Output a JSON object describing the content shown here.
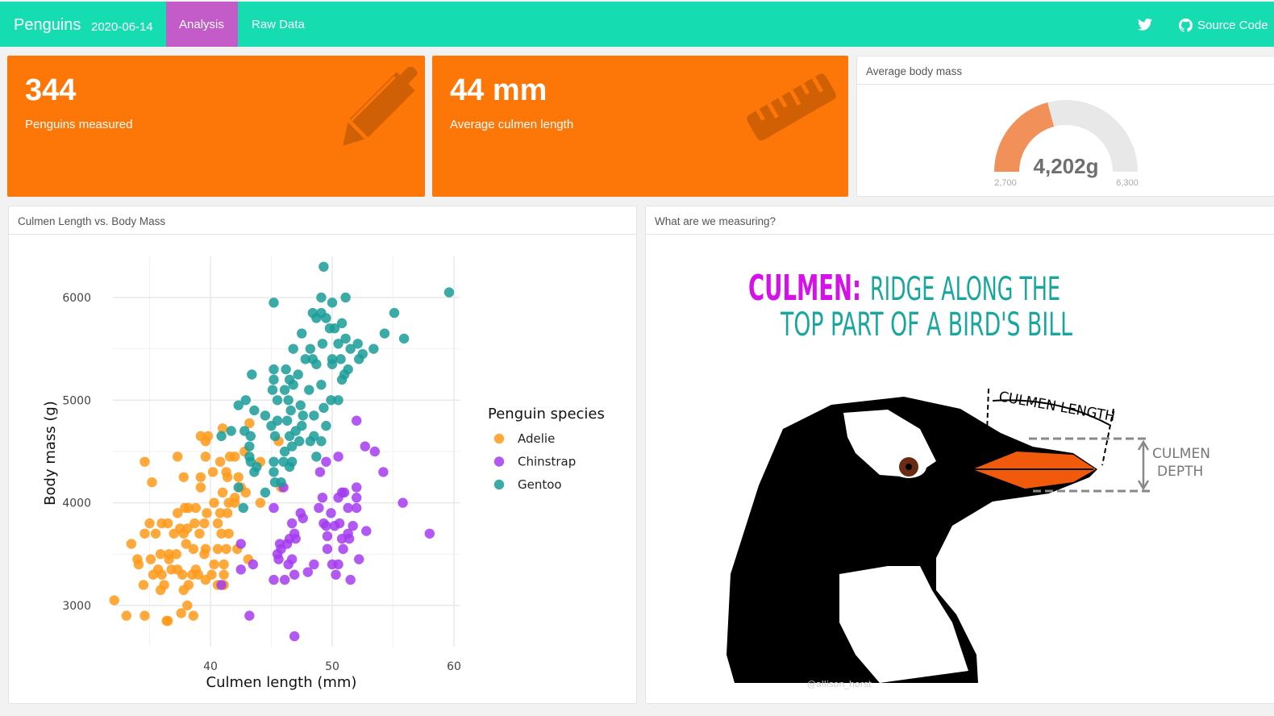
{
  "nav": {
    "brand": "Penguins",
    "date": "2020-06-14",
    "tabs": [
      {
        "label": "Analysis",
        "active": true
      },
      {
        "label": "Raw Data",
        "active": false
      }
    ],
    "twitter_icon": "twitter-icon",
    "source": {
      "icon": "github-icon",
      "label": "Source Code"
    }
  },
  "colors": {
    "navbar": "#16dcb2",
    "active_tab": "#c35bc8",
    "value_box": "#fd7608",
    "gauge_fill": "#f2905a",
    "gauge_track": "#e8e8e8"
  },
  "value_boxes": [
    {
      "value": "344",
      "caption": "Penguins measured",
      "icon": "pencil-icon"
    },
    {
      "value": "44 mm",
      "caption": "Average culmen length",
      "icon": "ruler-icon"
    }
  ],
  "gauge": {
    "title": "Average body mass",
    "value": 4202,
    "label": "4,202g",
    "min": 2700,
    "max": 6300,
    "min_label": "2,700",
    "max_label": "6,300"
  },
  "scatter_card": {
    "title": "Culmen Length vs. Body Mass"
  },
  "image_card": {
    "title": "What are we measuring?",
    "heading_key": "CULMEN:",
    "heading_rest_1": "RIDGE ALONG THE",
    "heading_rest_2": "TOP PART OF A BIRD'S BILL",
    "label_length": "CULMEN LENGTH",
    "label_depth_1": "CULMEN",
    "label_depth_2": "DEPTH",
    "credit": "@allison_horst"
  },
  "chart_data": {
    "type": "scatter",
    "xlabel": "Culmen length (mm)",
    "ylabel": "Body mass (g)",
    "xlim": [
      32,
      60.5
    ],
    "ylim": [
      2600,
      6400
    ],
    "xticks": [
      40,
      50,
      60
    ],
    "yticks": [
      3000,
      4000,
      5000,
      6000
    ],
    "grid": true,
    "legend": {
      "title": "Penguin species",
      "placement": "right"
    },
    "series": [
      {
        "name": "Adelie",
        "color": "#ff9a1a",
        "points": [
          [
            32.1,
            3050
          ],
          [
            33.1,
            2900
          ],
          [
            34.6,
            2900
          ],
          [
            36.5,
            2850
          ],
          [
            36.4,
            2850
          ],
          [
            38.6,
            2900
          ],
          [
            37.6,
            2925
          ],
          [
            38.1,
            3000
          ],
          [
            34.5,
            3200
          ],
          [
            35.9,
            3150
          ],
          [
            36.2,
            3200
          ],
          [
            37.8,
            3150
          ],
          [
            38.2,
            3200
          ],
          [
            39.6,
            3250
          ],
          [
            40.6,
            3200
          ],
          [
            41.1,
            3200
          ],
          [
            35.3,
            3300
          ],
          [
            36,
            3300
          ],
          [
            36.8,
            3350
          ],
          [
            38.5,
            3300
          ],
          [
            37.7,
            3300
          ],
          [
            40.1,
            3300
          ],
          [
            41.1,
            3300
          ],
          [
            34.1,
            3400
          ],
          [
            35.7,
            3350
          ],
          [
            36.6,
            3450
          ],
          [
            37.3,
            3350
          ],
          [
            38.8,
            3350
          ],
          [
            39,
            3300
          ],
          [
            40.3,
            3400
          ],
          [
            41.1,
            3400
          ],
          [
            33.5,
            3600
          ],
          [
            34,
            3450
          ],
          [
            35.1,
            3450
          ],
          [
            35.9,
            3500
          ],
          [
            36.6,
            3500
          ],
          [
            37.2,
            3500
          ],
          [
            38,
            3600
          ],
          [
            38.6,
            3550
          ],
          [
            39.5,
            3500
          ],
          [
            39.6,
            3550
          ],
          [
            40.6,
            3550
          ],
          [
            41.3,
            3550
          ],
          [
            42.2,
            3550
          ],
          [
            43.1,
            3450
          ],
          [
            34.6,
            3700
          ],
          [
            35,
            3800
          ],
          [
            35.5,
            3700
          ],
          [
            36,
            3800
          ],
          [
            36.5,
            3800
          ],
          [
            37,
            3700
          ],
          [
            37.5,
            3750
          ],
          [
            37.8,
            3700
          ],
          [
            38.1,
            3750
          ],
          [
            38.7,
            3800
          ],
          [
            39.1,
            3700
          ],
          [
            39.5,
            3800
          ],
          [
            40.6,
            3800
          ],
          [
            40.9,
            3700
          ],
          [
            41.5,
            3700
          ],
          [
            37.3,
            3900
          ],
          [
            37.9,
            3950
          ],
          [
            38.2,
            3950
          ],
          [
            38.8,
            3950
          ],
          [
            39.7,
            3900
          ],
          [
            40.3,
            4000
          ],
          [
            40.8,
            3900
          ],
          [
            41.4,
            3900
          ],
          [
            42,
            4000
          ],
          [
            41.5,
            4000
          ],
          [
            39.2,
            4150
          ],
          [
            39.2,
            4250
          ],
          [
            40.2,
            4300
          ],
          [
            41,
            4100
          ],
          [
            41.4,
            4250
          ],
          [
            41.3,
            4300
          ],
          [
            42.3,
            4250
          ],
          [
            42.5,
            4150
          ],
          [
            42,
            4050
          ],
          [
            42.9,
            4100
          ],
          [
            44.1,
            4000
          ],
          [
            37.8,
            4250
          ],
          [
            35.2,
            4200
          ],
          [
            34.6,
            4400
          ],
          [
            37.3,
            4450
          ],
          [
            39.6,
            4450
          ],
          [
            40.8,
            4400
          ],
          [
            41.6,
            4450
          ],
          [
            42,
            4450
          ],
          [
            42.8,
            4500
          ],
          [
            44.1,
            4400
          ],
          [
            39.2,
            4650
          ],
          [
            39.8,
            4650
          ],
          [
            39.6,
            4600
          ],
          [
            41,
            4725
          ],
          [
            43.2,
            4775
          ],
          [
            45.8,
            4150
          ],
          [
            45.6,
            4600
          ]
        ]
      },
      {
        "name": "Chinstrap",
        "color": "#a33cf0",
        "points": [
          [
            52,
            4800
          ],
          [
            52.7,
            4550
          ],
          [
            53.5,
            4500
          ],
          [
            50.5,
            4450
          ],
          [
            49.5,
            4400
          ],
          [
            54.2,
            4300
          ],
          [
            49,
            4300
          ],
          [
            46,
            4150
          ],
          [
            52,
            4150
          ],
          [
            50.8,
            4100
          ],
          [
            50.5,
            4050
          ],
          [
            51,
            4100
          ],
          [
            52,
            4050
          ],
          [
            49.2,
            4050
          ],
          [
            55.8,
            4000
          ],
          [
            45.2,
            3950
          ],
          [
            48.9,
            3950
          ],
          [
            51.3,
            3950
          ],
          [
            52,
            3950
          ],
          [
            49.9,
            3900
          ],
          [
            47.4,
            3900
          ],
          [
            47.6,
            3850
          ],
          [
            46.7,
            3800
          ],
          [
            49.3,
            3800
          ],
          [
            49.5,
            3775
          ],
          [
            50.2,
            3775
          ],
          [
            50.6,
            3800
          ],
          [
            51.7,
            3775
          ],
          [
            52.8,
            3725
          ],
          [
            58,
            3700
          ],
          [
            46.9,
            3700
          ],
          [
            46.5,
            3650
          ],
          [
            47,
            3650
          ],
          [
            49.6,
            3675
          ],
          [
            50.8,
            3650
          ],
          [
            51.3,
            3700
          ],
          [
            51.4,
            3650
          ],
          [
            45.7,
            3600
          ],
          [
            46.3,
            3600
          ],
          [
            42.5,
            3600
          ],
          [
            45.8,
            3550
          ],
          [
            49.6,
            3550
          ],
          [
            50.9,
            3550
          ],
          [
            45.5,
            3500
          ],
          [
            45.6,
            3450
          ],
          [
            46.7,
            3450
          ],
          [
            46.4,
            3400
          ],
          [
            52.2,
            3450
          ],
          [
            43.5,
            3400
          ],
          [
            48.5,
            3400
          ],
          [
            50,
            3400
          ],
          [
            50.5,
            3400
          ],
          [
            42.5,
            3350
          ],
          [
            48,
            3325
          ],
          [
            50.3,
            3300
          ],
          [
            45.2,
            3250
          ],
          [
            46.1,
            3250
          ],
          [
            46.9,
            3300
          ],
          [
            51.5,
            3250
          ],
          [
            40.9,
            3200
          ],
          [
            43.2,
            2900
          ],
          [
            46.9,
            2700
          ]
        ]
      },
      {
        "name": "Gentoo",
        "color": "#1a9c99",
        "points": [
          [
            49.3,
            6300
          ],
          [
            45.2,
            5950
          ],
          [
            59.6,
            6050
          ],
          [
            49.1,
            6000
          ],
          [
            51.1,
            6000
          ],
          [
            50,
            5950
          ],
          [
            48.4,
            5850
          ],
          [
            49.1,
            5850
          ],
          [
            55.1,
            5850
          ],
          [
            48.7,
            5800
          ],
          [
            49.5,
            5800
          ],
          [
            50.8,
            5750
          ],
          [
            50.2,
            5700
          ],
          [
            49.8,
            5700
          ],
          [
            47.5,
            5650
          ],
          [
            54.3,
            5650
          ],
          [
            55.9,
            5600
          ],
          [
            51.1,
            5600
          ],
          [
            49.2,
            5550
          ],
          [
            50.5,
            5550
          ],
          [
            52.1,
            5550
          ],
          [
            46.8,
            5500
          ],
          [
            48.2,
            5500
          ],
          [
            51.5,
            5500
          ],
          [
            53.4,
            5500
          ],
          [
            47.8,
            5400
          ],
          [
            48.4,
            5400
          ],
          [
            50,
            5400
          ],
          [
            50.7,
            5400
          ],
          [
            52.2,
            5400
          ],
          [
            52.5,
            5450
          ],
          [
            48.7,
            5350
          ],
          [
            50,
            5350
          ],
          [
            43.4,
            5250
          ],
          [
            45.2,
            5300
          ],
          [
            46.2,
            5300
          ],
          [
            47.2,
            5250
          ],
          [
            51.3,
            5300
          ],
          [
            45.2,
            5200
          ],
          [
            46.5,
            5200
          ],
          [
            46.8,
            5150
          ],
          [
            51,
            5250
          ],
          [
            50.8,
            5200
          ],
          [
            48.1,
            5100
          ],
          [
            49.1,
            5150
          ],
          [
            45.1,
            5100
          ],
          [
            46.1,
            5100
          ],
          [
            45.5,
            5000
          ],
          [
            46.4,
            5000
          ],
          [
            42.3,
            4950
          ],
          [
            42.9,
            5000
          ],
          [
            49.9,
            5000
          ],
          [
            50.5,
            5000
          ],
          [
            43.6,
            4900
          ],
          [
            47.4,
            4950
          ],
          [
            44.5,
            4850
          ],
          [
            47.6,
            4850
          ],
          [
            48.5,
            4850
          ],
          [
            46.6,
            4900
          ],
          [
            49.3,
            4925
          ],
          [
            45.5,
            4800
          ],
          [
            46.3,
            4800
          ],
          [
            45,
            4750
          ],
          [
            47,
            4700
          ],
          [
            47.5,
            4750
          ],
          [
            49.5,
            4750
          ],
          [
            41.7,
            4700
          ],
          [
            40.9,
            4650
          ],
          [
            42.8,
            4700
          ],
          [
            43.3,
            4650
          ],
          [
            46.5,
            4650
          ],
          [
            45.3,
            4650
          ],
          [
            47.3,
            4600
          ],
          [
            48.2,
            4600
          ],
          [
            48.5,
            4650
          ],
          [
            49.1,
            4600
          ],
          [
            43.2,
            4550
          ],
          [
            46.1,
            4500
          ],
          [
            46.7,
            4550
          ],
          [
            48.7,
            4450
          ],
          [
            43.2,
            4450
          ],
          [
            43.3,
            4400
          ],
          [
            45.2,
            4400
          ],
          [
            46,
            4400
          ],
          [
            46.7,
            4400
          ],
          [
            46.5,
            4350
          ],
          [
            43.8,
            4350
          ],
          [
            43.6,
            4300
          ],
          [
            45.2,
            4300
          ],
          [
            42.3,
            4150
          ],
          [
            45.3,
            4200
          ],
          [
            45.8,
            4200
          ],
          [
            44.5,
            4100
          ],
          [
            42.7,
            3950
          ]
        ]
      }
    ]
  }
}
